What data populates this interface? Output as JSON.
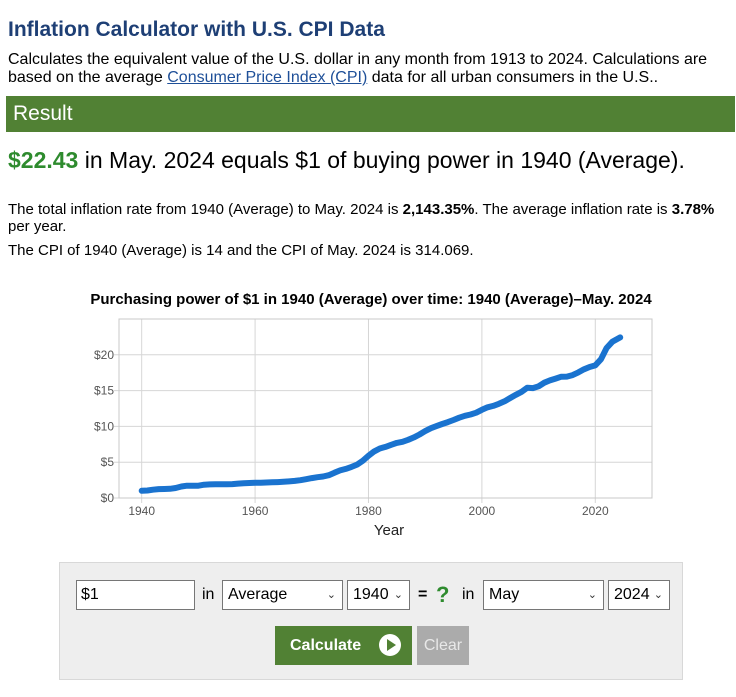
{
  "header": {
    "title": "Inflation Calculator with U.S. CPI Data",
    "intro_before": "Calculates the equivalent value of the U.S. dollar in any month from 1913 to 2024. Calculations are based on the average ",
    "intro_link": "Consumer Price Index (CPI)",
    "intro_after": " data for all urban consumers in the U.S.."
  },
  "result": {
    "bar_label": "Result",
    "value": "$22.43",
    "statement": " in May. 2024 equals $1 of buying power in 1940 (Average).",
    "rate_before": "The total inflation rate from 1940 (Average) to May. 2024 is ",
    "total_rate": "2,143.35%",
    "rate_middle": ". The average inflation rate is ",
    "avg_rate": "3.78%",
    "rate_after": " per year.",
    "cpi_text": "The CPI of 1940 (Average) is 14 and the CPI of May. 2024 is 314.069."
  },
  "chart_data": {
    "type": "line",
    "title": "Purchasing power of $1 in 1940 (Average) over time: 1940 (Average)–May. 2024",
    "xlabel": "Year",
    "ylabel": "",
    "xlim": [
      1936,
      2030
    ],
    "ylim": [
      0,
      25
    ],
    "x_ticks": [
      1940,
      1960,
      1980,
      2000,
      2020
    ],
    "y_ticks": [
      0,
      5,
      10,
      15,
      20
    ],
    "y_tick_labels": [
      "$0",
      "$5",
      "$10",
      "$15",
      "$20"
    ],
    "grid": true,
    "line_color": "#1a73cf",
    "x": [
      1940,
      1941,
      1942,
      1943,
      1944,
      1945,
      1946,
      1947,
      1948,
      1949,
      1950,
      1951,
      1952,
      1953,
      1954,
      1955,
      1956,
      1957,
      1958,
      1959,
      1960,
      1961,
      1962,
      1963,
      1964,
      1965,
      1966,
      1967,
      1968,
      1969,
      1970,
      1971,
      1972,
      1973,
      1974,
      1975,
      1976,
      1977,
      1978,
      1979,
      1980,
      1981,
      1982,
      1983,
      1984,
      1985,
      1986,
      1987,
      1988,
      1989,
      1990,
      1991,
      1992,
      1993,
      1994,
      1995,
      1996,
      1997,
      1998,
      1999,
      2000,
      2001,
      2002,
      2003,
      2004,
      2005,
      2006,
      2007,
      2008,
      2009,
      2010,
      2011,
      2012,
      2013,
      2014,
      2015,
      2016,
      2017,
      2018,
      2019,
      2020,
      2021,
      2022,
      2023,
      2024.4
    ],
    "y": [
      1.0,
      1.05,
      1.16,
      1.24,
      1.26,
      1.29,
      1.4,
      1.6,
      1.72,
      1.71,
      1.72,
      1.86,
      1.9,
      1.91,
      1.92,
      1.92,
      1.94,
      2.01,
      2.07,
      2.09,
      2.12,
      2.14,
      2.16,
      2.19,
      2.22,
      2.26,
      2.32,
      2.39,
      2.49,
      2.63,
      2.78,
      2.9,
      3.0,
      3.18,
      3.53,
      3.85,
      4.07,
      4.34,
      4.67,
      5.2,
      5.9,
      6.51,
      6.91,
      7.13,
      7.43,
      7.7,
      7.85,
      8.13,
      8.46,
      8.87,
      9.35,
      9.75,
      10.04,
      10.34,
      10.6,
      10.9,
      11.22,
      11.48,
      11.66,
      11.91,
      12.32,
      12.67,
      12.87,
      13.16,
      13.51,
      13.97,
      14.42,
      14.83,
      15.4,
      15.35,
      15.6,
      16.1,
      16.43,
      16.67,
      16.94,
      16.96,
      17.17,
      17.54,
      17.97,
      18.3,
      18.52,
      19.39,
      20.95,
      21.81,
      22.43
    ]
  },
  "calculator": {
    "amount_value": "$1",
    "in_label_1": "in",
    "month_from": "Average",
    "year_from": "1940",
    "equals": "=",
    "question": "?",
    "in_label_2": "in",
    "month_to": "May",
    "year_to": "2024",
    "calculate_label": "Calculate",
    "clear_label": "Clear"
  }
}
